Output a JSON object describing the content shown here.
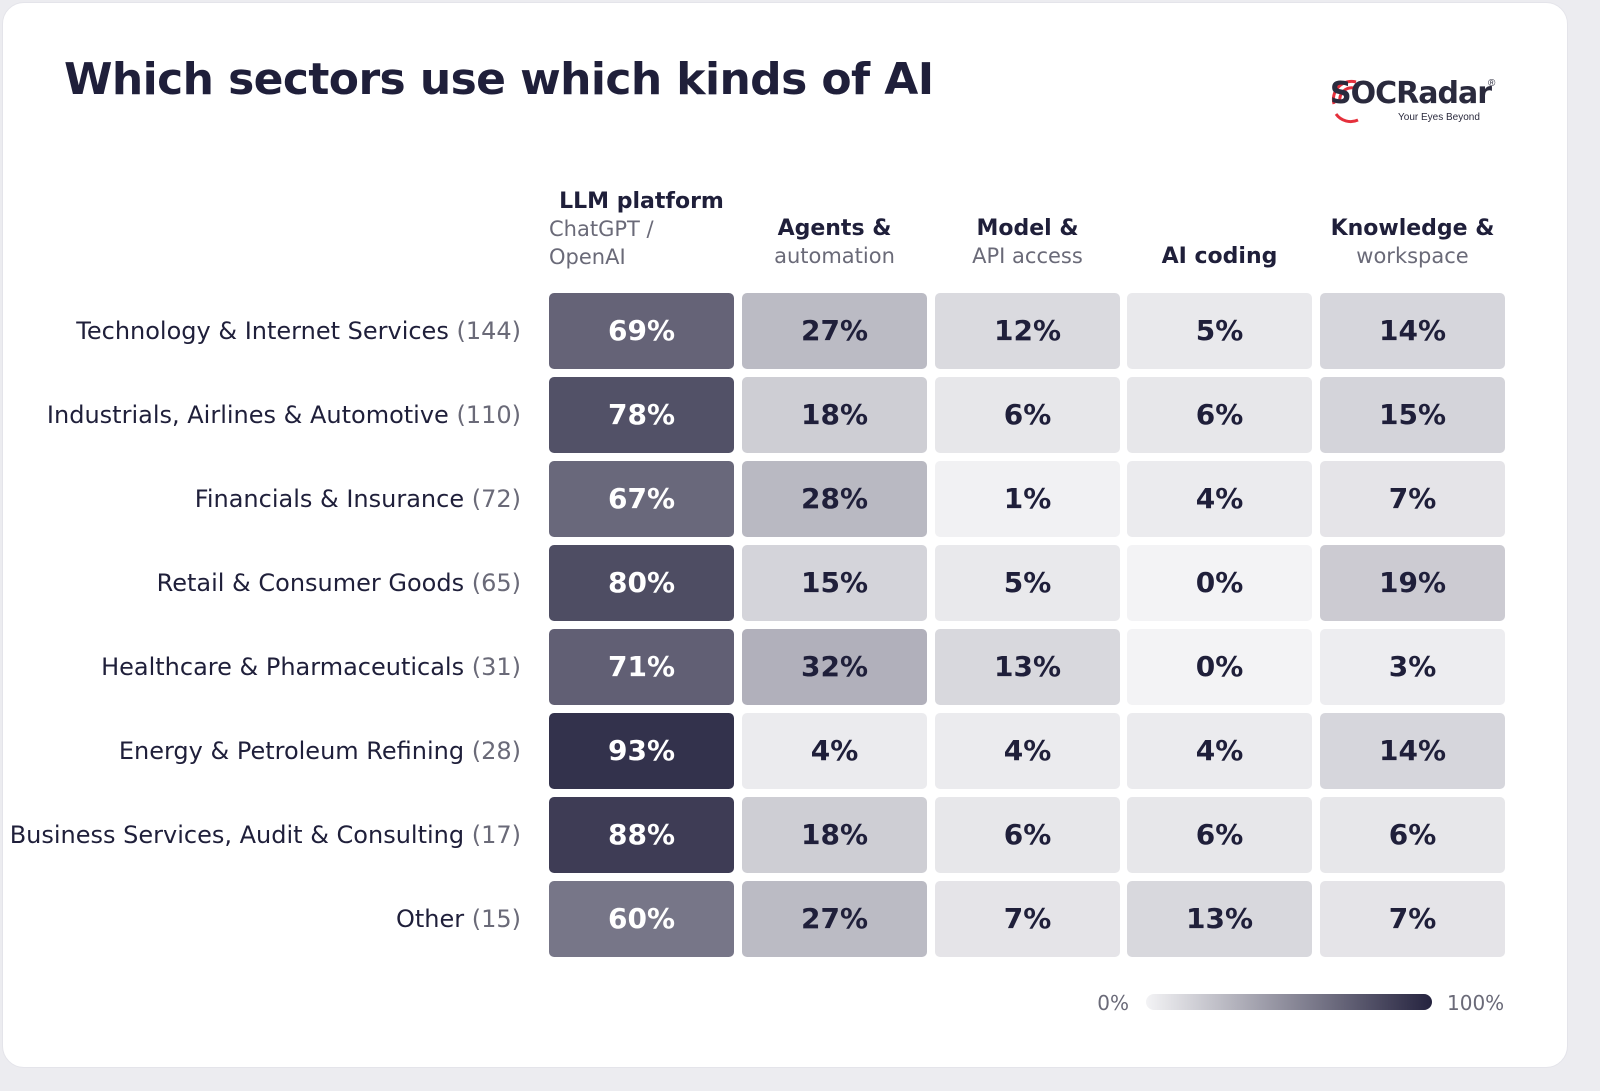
{
  "title": "Which sectors use which kinds of AI",
  "logo": {
    "wordmark": "SOCRadar",
    "tagline": "Your Eyes Beyond",
    "registered": "®"
  },
  "colors": {
    "low": "#f3f3f5",
    "high": "#25233f",
    "text_dark": "#1f1f3a",
    "text_light": "#ffffff",
    "logo_red": "#e5303c"
  },
  "chart_data": {
    "type": "heatmap",
    "title": "Which sectors use which kinds of AI",
    "columns": [
      {
        "label": "LLM platform",
        "sublabel": "ChatGPT / OpenAI",
        "sublines": [
          "ChatGPT /",
          "OpenAI"
        ]
      },
      {
        "label": "Agents &",
        "sublabel": "automation",
        "sublines": [
          "automation"
        ]
      },
      {
        "label": "Model &",
        "sublabel": "API access",
        "sublines": [
          "API access"
        ]
      },
      {
        "label": "AI coding",
        "sublabel": "",
        "sublines": []
      },
      {
        "label": "Knowledge &",
        "sublabel": "workspace",
        "sublines": [
          "workspace"
        ]
      }
    ],
    "rows": [
      {
        "label": "Technology & Internet Services",
        "count": "(144)",
        "values": [
          69,
          27,
          12,
          5,
          14
        ]
      },
      {
        "label": "Industrials, Airlines & Automotive",
        "count": "(110)",
        "values": [
          78,
          18,
          6,
          6,
          15
        ]
      },
      {
        "label": "Financials & Insurance",
        "count": "(72)",
        "values": [
          67,
          28,
          1,
          4,
          7
        ]
      },
      {
        "label": "Retail & Consumer Goods",
        "count": "(65)",
        "values": [
          80,
          15,
          5,
          0,
          19
        ]
      },
      {
        "label": "Healthcare & Pharmaceuticals",
        "count": "(31)",
        "values": [
          71,
          32,
          13,
          0,
          3
        ]
      },
      {
        "label": "Energy & Petroleum Refining",
        "count": "(28)",
        "values": [
          93,
          4,
          4,
          4,
          14
        ]
      },
      {
        "label": "Business Services, Audit & Consulting",
        "count": "(17)",
        "values": [
          88,
          18,
          6,
          6,
          6
        ]
      },
      {
        "label": "Other",
        "count": "(15)",
        "values": [
          60,
          27,
          7,
          13,
          7
        ]
      }
    ],
    "value_suffix": "%",
    "scale": {
      "min": 0,
      "max": 100,
      "min_label": "0%",
      "max_label": "100%"
    }
  }
}
